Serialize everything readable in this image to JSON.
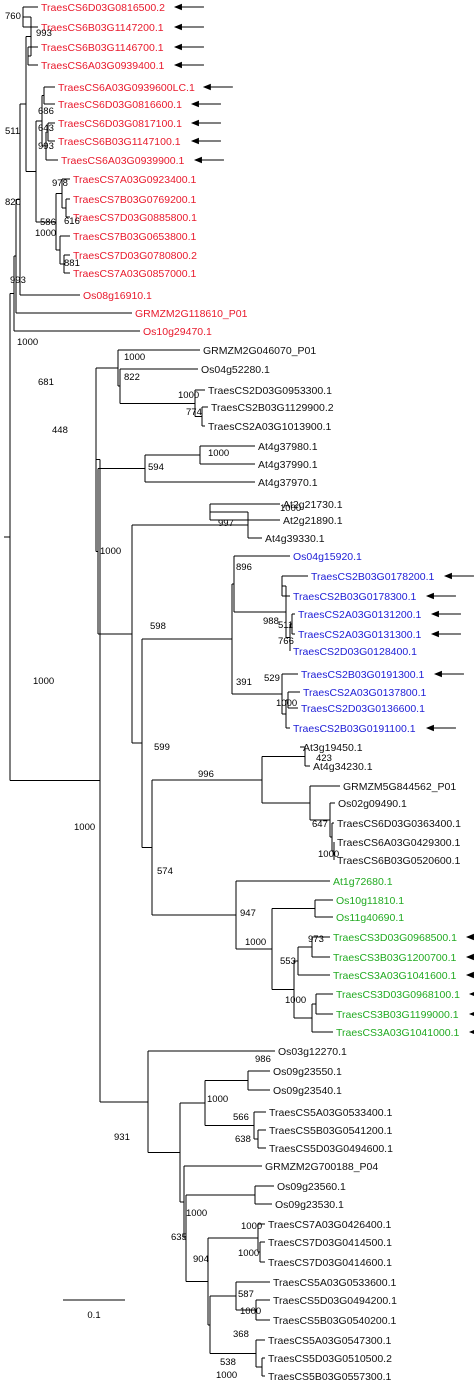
{
  "colors": {
    "red": "#e8192c",
    "blue": "#1d1dd6",
    "green": "#22aa22",
    "black": "#111111"
  },
  "leaves": [
    {
      "label": "TraesCS6D03G0816500.2",
      "color": "red",
      "arrow": true
    },
    {
      "label": "TraesCS6B03G1147200.1",
      "color": "red",
      "arrow": true
    },
    {
      "label": "TraesCS6B03G1146700.1",
      "color": "red",
      "arrow": true
    },
    {
      "label": "TraesCS6A03G0939400.1",
      "color": "red",
      "arrow": true
    },
    {
      "label": "TraesCS6A03G0939600LC.1",
      "color": "red",
      "arrow": true
    },
    {
      "label": "TraesCS6D03G0816600.1",
      "color": "red",
      "arrow": true
    },
    {
      "label": "TraesCS6D03G0817100.1",
      "color": "red",
      "arrow": true
    },
    {
      "label": "TraesCS6B03G1147100.1",
      "color": "red",
      "arrow": true
    },
    {
      "label": "TraesCS6A03G0939900.1",
      "color": "red",
      "arrow": true
    },
    {
      "label": "TraesCS7A03G0923400.1",
      "color": "red",
      "arrow": false
    },
    {
      "label": "TraesCS7B03G0769200.1",
      "color": "red",
      "arrow": false
    },
    {
      "label": "TraesCS7D03G0885800.1",
      "color": "red",
      "arrow": false
    },
    {
      "label": "TraesCS7B03G0653800.1",
      "color": "red",
      "arrow": false
    },
    {
      "label": "TraesCS7D03G0780800.2",
      "color": "red",
      "arrow": false
    },
    {
      "label": "TraesCS7A03G0857000.1",
      "color": "red",
      "arrow": false
    },
    {
      "label": "Os08g16910.1",
      "color": "red",
      "arrow": false
    },
    {
      "label": "GRMZM2G118610_P01",
      "color": "red",
      "arrow": false
    },
    {
      "label": "Os10g29470.1",
      "color": "red",
      "arrow": false
    },
    {
      "label": "GRMZM2G046070_P01",
      "color": "black",
      "arrow": false
    },
    {
      "label": "Os04g52280.1",
      "color": "black",
      "arrow": false
    },
    {
      "label": "TraesCS2D03G0953300.1",
      "color": "black",
      "arrow": false
    },
    {
      "label": "TraesCS2B03G1129900.2",
      "color": "black",
      "arrow": false
    },
    {
      "label": "TraesCS2A03G1013900.1",
      "color": "black",
      "arrow": false
    },
    {
      "label": "At4g37980.1",
      "color": "black",
      "arrow": false
    },
    {
      "label": "At4g37990.1",
      "color": "black",
      "arrow": false
    },
    {
      "label": "At4g37970.1",
      "color": "black",
      "arrow": false
    },
    {
      "label": "At2g21730.1",
      "color": "black",
      "arrow": false
    },
    {
      "label": "At2g21890.1",
      "color": "black",
      "arrow": false
    },
    {
      "label": "At4g39330.1",
      "color": "black",
      "arrow": false
    },
    {
      "label": "Os04g15920.1",
      "color": "blue",
      "arrow": false
    },
    {
      "label": "TraesCS2B03G0178200.1",
      "color": "blue",
      "arrow": true
    },
    {
      "label": "TraesCS2B03G0178300.1",
      "color": "blue",
      "arrow": true
    },
    {
      "label": "TraesCS2A03G0131200.1",
      "color": "blue",
      "arrow": true
    },
    {
      "label": "TraesCS2A03G0131300.1",
      "color": "blue",
      "arrow": true
    },
    {
      "label": "TraesCS2D03G0128400.1",
      "color": "blue",
      "arrow": false
    },
    {
      "label": "TraesCS2B03G0191300.1",
      "color": "blue",
      "arrow": true
    },
    {
      "label": "TraesCS2A03G0137800.1",
      "color": "blue",
      "arrow": false
    },
    {
      "label": "TraesCS2D03G0136600.1",
      "color": "blue",
      "arrow": false
    },
    {
      "label": "TraesCS2B03G0191100.1",
      "color": "blue",
      "arrow": true
    },
    {
      "label": "At3g19450.1",
      "color": "black",
      "arrow": false
    },
    {
      "label": "At4g34230.1",
      "color": "black",
      "arrow": false
    },
    {
      "label": "GRMZM5G844562_P01",
      "color": "black",
      "arrow": false
    },
    {
      "label": "Os02g09490.1",
      "color": "black",
      "arrow": false
    },
    {
      "label": "TraesCS6D03G0363400.1",
      "color": "black",
      "arrow": false
    },
    {
      "label": "TraesCS6A03G0429300.1",
      "color": "black",
      "arrow": false
    },
    {
      "label": "TraesCS6B03G0520600.1",
      "color": "black",
      "arrow": false
    },
    {
      "label": "At1g72680.1",
      "color": "green",
      "arrow": false
    },
    {
      "label": "Os10g11810.1",
      "color": "green",
      "arrow": false
    },
    {
      "label": "Os11g40690.1",
      "color": "green",
      "arrow": false
    },
    {
      "label": "TraesCS3D03G0968500.1",
      "color": "green",
      "arrow": true
    },
    {
      "label": "TraesCS3B03G1200700.1",
      "color": "green",
      "arrow": true
    },
    {
      "label": "TraesCS3A03G1041600.1",
      "color": "green",
      "arrow": true
    },
    {
      "label": "TraesCS3D03G0968100.1",
      "color": "green",
      "arrow": true
    },
    {
      "label": "TraesCS3B03G1199000.1",
      "color": "green",
      "arrow": true
    },
    {
      "label": "TraesCS3A03G1041000.1",
      "color": "green",
      "arrow": true
    },
    {
      "label": "Os03g12270.1",
      "color": "black",
      "arrow": false
    },
    {
      "label": "Os09g23550.1",
      "color": "black",
      "arrow": false
    },
    {
      "label": "Os09g23540.1",
      "color": "black",
      "arrow": false
    },
    {
      "label": "TraesCS5A03G0533400.1",
      "color": "black",
      "arrow": false
    },
    {
      "label": "TraesCS5B03G0541200.1",
      "color": "black",
      "arrow": false
    },
    {
      "label": "TraesCS5D03G0494600.1",
      "color": "black",
      "arrow": false
    },
    {
      "label": "GRMZM2G700188_P04",
      "color": "black",
      "arrow": false
    },
    {
      "label": "Os09g23560.1",
      "color": "black",
      "arrow": false
    },
    {
      "label": "Os09g23530.1",
      "color": "black",
      "arrow": false
    },
    {
      "label": "TraesCS7A03G0426400.1",
      "color": "black",
      "arrow": false
    },
    {
      "label": "TraesCS7D03G0414500.1",
      "color": "black",
      "arrow": false
    },
    {
      "label": "TraesCS7D03G0414600.1",
      "color": "black",
      "arrow": false
    },
    {
      "label": "TraesCS5A03G0533600.1",
      "color": "black",
      "arrow": false
    },
    {
      "label": "TraesCS5D03G0494200.1",
      "color": "black",
      "arrow": false
    },
    {
      "label": "TraesCS5B03G0540200.1",
      "color": "black",
      "arrow": false
    },
    {
      "label": "TraesCS5A03G0547300.1",
      "color": "black",
      "arrow": false
    },
    {
      "label": "TraesCS5D03G0510500.2",
      "color": "black",
      "arrow": false
    },
    {
      "label": "TraesCS5B03G0557300.1",
      "color": "black",
      "arrow": false
    }
  ],
  "bootstraps": [
    "760",
    "993",
    "686",
    "643",
    "993",
    "511",
    "978",
    "616",
    "881",
    "586",
    "1000",
    "820",
    "993",
    "1000",
    "1000",
    "822",
    "774",
    "1000",
    "681",
    "448",
    "1000",
    "594",
    "1000",
    "997",
    "896",
    "988",
    "511",
    "766",
    "529",
    "1000",
    "391",
    "598",
    "1000",
    "996",
    "423",
    "647",
    "1000",
    "947",
    "973",
    "553",
    "1000",
    "1000",
    "574",
    "599",
    "1000",
    "1000",
    "986",
    "1000",
    "566",
    "638",
    "904",
    "635",
    "1000",
    "1000",
    "587",
    "1000",
    "368",
    "538",
    "1000",
    "931",
    "1000"
  ],
  "scale_bar": {
    "label": "0.1"
  }
}
